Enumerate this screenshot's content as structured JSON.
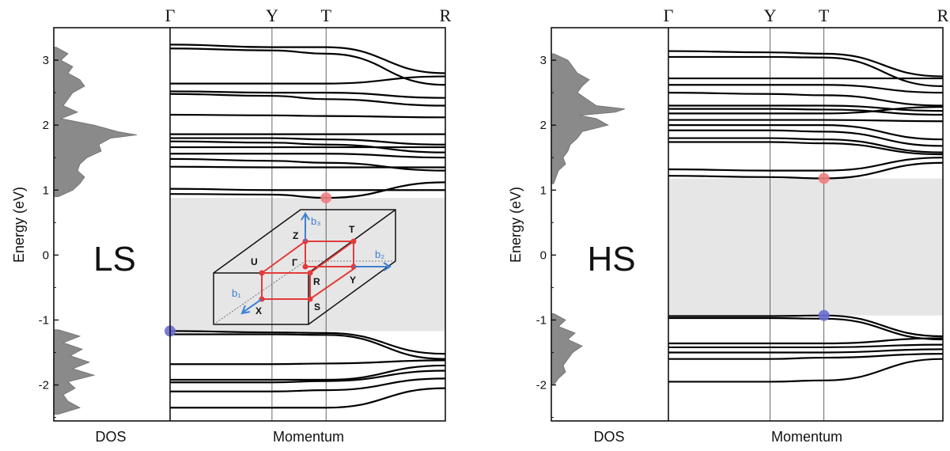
{
  "chart_data": [
    {
      "type": "line",
      "state_label": "LS",
      "ylabel": "Energy (eV)",
      "xlabel": "Momentum",
      "dos_label": "DOS",
      "kpoints": [
        "Γ",
        "Y",
        "T",
        "R"
      ],
      "kpoint_positions": [
        0,
        1,
        1.53,
        2.7
      ],
      "yticks": [
        "3",
        "2",
        "1",
        "0",
        "-1",
        "-2"
      ],
      "ylim": [
        -2.5,
        3.5
      ],
      "gap": {
        "low": -1.17,
        "high": 0.88
      },
      "cbm": {
        "k": 1.53,
        "E": 0.88,
        "color": "#f08080"
      },
      "vbm": {
        "k": 0,
        "E": -1.17,
        "color": "#6a6fd0"
      },
      "bands": [
        {
          "k": [
            0,
            1,
            1.53,
            2.7
          ],
          "E": [
            3.24,
            3.2,
            3.2,
            2.8
          ]
        },
        {
          "k": [
            0,
            1,
            1.53,
            2.7
          ],
          "E": [
            3.18,
            3.15,
            3.1,
            2.62
          ]
        },
        {
          "k": [
            0,
            1,
            1.53,
            2.7
          ],
          "E": [
            2.64,
            2.64,
            2.64,
            2.75
          ]
        },
        {
          "k": [
            0,
            1,
            1.53,
            2.7
          ],
          "E": [
            2.52,
            2.5,
            2.5,
            2.42
          ]
        },
        {
          "k": [
            0,
            1,
            1.53,
            2.7
          ],
          "E": [
            2.48,
            2.45,
            2.4,
            2.3
          ]
        },
        {
          "k": [
            0,
            1,
            1.53,
            2.7
          ],
          "E": [
            2.16,
            2.15,
            2.14,
            2.12
          ]
        },
        {
          "k": [
            0,
            1,
            1.53,
            2.7
          ],
          "E": [
            1.86,
            1.86,
            1.86,
            1.86
          ]
        },
        {
          "k": [
            0,
            1,
            1.53,
            2.7
          ],
          "E": [
            1.8,
            1.8,
            1.78,
            1.7
          ]
        },
        {
          "k": [
            0,
            1,
            1.53,
            2.7
          ],
          "E": [
            1.75,
            1.73,
            1.7,
            1.58
          ]
        },
        {
          "k": [
            0,
            1,
            1.53,
            2.7
          ],
          "E": [
            1.66,
            1.66,
            1.66,
            1.66
          ]
        },
        {
          "k": [
            0,
            1,
            1.53,
            2.7
          ],
          "E": [
            1.56,
            1.56,
            1.56,
            1.5
          ]
        },
        {
          "k": [
            0,
            1,
            1.53,
            2.7
          ],
          "E": [
            1.48,
            1.45,
            1.42,
            1.3
          ]
        },
        {
          "k": [
            0,
            1,
            1.53,
            2.7
          ],
          "E": [
            1.36,
            1.35,
            1.35,
            1.35
          ]
        },
        {
          "k": [
            0,
            1,
            1.53,
            2.7
          ],
          "E": [
            1.02,
            1.0,
            1.0,
            1.0
          ]
        },
        {
          "k": [
            0,
            1,
            1.53,
            2.7
          ],
          "E": [
            0.94,
            0.93,
            0.88,
            1.12
          ]
        },
        {
          "k": [
            0,
            1,
            1.53,
            2.7
          ],
          "E": [
            -1.17,
            -1.19,
            -1.2,
            -1.52
          ]
        },
        {
          "k": [
            0,
            1,
            1.53,
            2.7
          ],
          "E": [
            -1.22,
            -1.22,
            -1.23,
            -1.6
          ]
        },
        {
          "k": [
            0,
            1,
            1.53,
            2.7
          ],
          "E": [
            -1.68,
            -1.68,
            -1.67,
            -1.62
          ]
        },
        {
          "k": [
            0,
            1,
            1.53,
            2.7
          ],
          "E": [
            -1.92,
            -1.92,
            -1.92,
            -1.7
          ]
        },
        {
          "k": [
            0,
            1,
            1.53,
            2.7
          ],
          "E": [
            -1.96,
            -1.96,
            -1.94,
            -1.78
          ]
        },
        {
          "k": [
            0,
            1,
            1.53,
            2.7
          ],
          "E": [
            -2.1,
            -2.1,
            -2.08,
            -1.9
          ]
        },
        {
          "k": [
            0,
            1,
            1.53,
            2.7
          ],
          "E": [
            -2.35,
            -2.35,
            -2.35,
            -2.05
          ]
        }
      ],
      "dos": {
        "E": [
          3.2,
          3.1,
          3.0,
          2.9,
          2.8,
          2.7,
          2.6,
          2.5,
          2.4,
          2.3,
          2.2,
          2.1,
          2.0,
          1.9,
          1.85,
          1.8,
          1.7,
          1.6,
          1.5,
          1.4,
          1.3,
          1.2,
          1.1,
          1.0,
          0.9,
          -1.15,
          -1.25,
          -1.35,
          -1.45,
          -1.55,
          -1.65,
          -1.75,
          -1.85,
          -1.95,
          -2.05,
          -2.15,
          -2.25,
          -2.35,
          -2.45
        ],
        "value": [
          0.05,
          0.3,
          0.15,
          0.4,
          0.3,
          0.55,
          0.65,
          0.4,
          0.3,
          0.2,
          0.5,
          0.15,
          0.85,
          1.35,
          1.75,
          1.2,
          0.95,
          1.0,
          0.7,
          0.55,
          0.5,
          0.65,
          0.55,
          0.4,
          0.1,
          0.1,
          0.55,
          0.2,
          0.6,
          0.35,
          0.75,
          0.4,
          0.85,
          0.3,
          0.45,
          0.2,
          0.3,
          0.55,
          0.1
        ]
      },
      "brillouin_zone": {
        "points": [
          "Z",
          "T",
          "U",
          "Γ",
          "R",
          "Y",
          "X",
          "S"
        ],
        "vectors": [
          "b₁",
          "b₂",
          "b₃"
        ]
      }
    },
    {
      "type": "line",
      "state_label": "HS",
      "ylabel": "Energy (eV)",
      "xlabel": "Momentum",
      "dos_label": "DOS",
      "kpoints": [
        "Γ",
        "Y",
        "T",
        "R"
      ],
      "kpoint_positions": [
        0,
        1,
        1.53,
        2.7
      ],
      "yticks": [
        "3",
        "2",
        "1",
        "0",
        "-1",
        "-2"
      ],
      "ylim": [
        -2.5,
        3.5
      ],
      "gap": {
        "low": -0.93,
        "high": 1.18
      },
      "cbm": {
        "k": 1.53,
        "E": 1.18,
        "color": "#f08080"
      },
      "vbm": {
        "k": 1.53,
        "E": -0.93,
        "color": "#6a6fd0"
      },
      "bands": [
        {
          "k": [
            0,
            1,
            1.53,
            2.7
          ],
          "E": [
            3.14,
            3.12,
            3.1,
            2.75
          ]
        },
        {
          "k": [
            0,
            1,
            1.53,
            2.7
          ],
          "E": [
            3.05,
            3.05,
            3.04,
            2.6
          ]
        },
        {
          "k": [
            0,
            1,
            1.53,
            2.7
          ],
          "E": [
            2.72,
            2.72,
            2.72,
            2.72
          ]
        },
        {
          "k": [
            0,
            1,
            1.53,
            2.7
          ],
          "E": [
            2.62,
            2.62,
            2.62,
            2.5
          ]
        },
        {
          "k": [
            0,
            1,
            1.53,
            2.7
          ],
          "E": [
            2.5,
            2.48,
            2.46,
            2.3
          ]
        },
        {
          "k": [
            0,
            1,
            1.53,
            2.7
          ],
          "E": [
            2.3,
            2.3,
            2.3,
            2.22
          ]
        },
        {
          "k": [
            0,
            1,
            1.53,
            2.7
          ],
          "E": [
            2.25,
            2.25,
            2.24,
            2.16
          ]
        },
        {
          "k": [
            0,
            1,
            1.53,
            2.7
          ],
          "E": [
            2.18,
            2.18,
            2.18,
            2.28
          ]
        },
        {
          "k": [
            0,
            1,
            1.53,
            2.7
          ],
          "E": [
            2.08,
            2.08,
            2.08,
            2.06
          ]
        },
        {
          "k": [
            0,
            1,
            1.53,
            2.7
          ],
          "E": [
            2.0,
            2.0,
            2.0,
            1.78
          ]
        },
        {
          "k": [
            0,
            1,
            1.53,
            2.7
          ],
          "E": [
            1.92,
            1.92,
            1.9,
            1.68
          ]
        },
        {
          "k": [
            0,
            1,
            1.53,
            2.7
          ],
          "E": [
            1.8,
            1.8,
            1.78,
            1.58
          ]
        },
        {
          "k": [
            0,
            1,
            1.53,
            2.7
          ],
          "E": [
            1.74,
            1.74,
            1.72,
            1.55
          ]
        },
        {
          "k": [
            0,
            1,
            1.53,
            2.7
          ],
          "E": [
            1.32,
            1.3,
            1.3,
            1.5
          ]
        },
        {
          "k": [
            0,
            1,
            1.53,
            2.7
          ],
          "E": [
            1.22,
            1.2,
            1.18,
            1.42
          ]
        },
        {
          "k": [
            0,
            1,
            1.53,
            2.7
          ],
          "E": [
            -0.94,
            -0.94,
            -0.93,
            -1.25
          ]
        },
        {
          "k": [
            0,
            1,
            1.53,
            2.7
          ],
          "E": [
            -0.97,
            -0.97,
            -0.98,
            -1.3
          ]
        },
        {
          "k": [
            0,
            1,
            1.53,
            2.7
          ],
          "E": [
            -1.36,
            -1.36,
            -1.36,
            -1.28
          ]
        },
        {
          "k": [
            0,
            1,
            1.53,
            2.7
          ],
          "E": [
            -1.42,
            -1.42,
            -1.42,
            -1.38
          ]
        },
        {
          "k": [
            0,
            1,
            1.53,
            2.7
          ],
          "E": [
            -1.5,
            -1.5,
            -1.5,
            -1.45
          ]
        },
        {
          "k": [
            0,
            1,
            1.53,
            2.7
          ],
          "E": [
            -1.6,
            -1.6,
            -1.58,
            -1.52
          ]
        },
        {
          "k": [
            0,
            1,
            1.53,
            2.7
          ],
          "E": [
            -1.95,
            -1.95,
            -1.93,
            -1.6
          ]
        }
      ],
      "dos": {
        "E": [
          3.1,
          3.0,
          2.9,
          2.8,
          2.7,
          2.6,
          2.5,
          2.4,
          2.3,
          2.25,
          2.2,
          2.15,
          2.1,
          2.0,
          1.9,
          1.8,
          1.7,
          1.6,
          1.5,
          1.4,
          1.3,
          1.2,
          1.1,
          -0.9,
          -1.0,
          -1.1,
          -1.2,
          -1.3,
          -1.4,
          -1.5,
          -1.6,
          -1.7,
          -1.8,
          -1.9,
          -2.0
        ],
        "value": [
          0.05,
          0.35,
          0.45,
          0.55,
          0.8,
          0.65,
          0.55,
          0.75,
          0.95,
          1.55,
          1.35,
          0.6,
          0.95,
          1.2,
          0.65,
          0.55,
          0.4,
          0.35,
          0.25,
          0.3,
          0.15,
          0.1,
          0.05,
          0.05,
          0.3,
          0.15,
          0.5,
          0.35,
          0.65,
          0.45,
          0.35,
          0.25,
          0.3,
          0.15,
          0.05
        ]
      }
    }
  ]
}
